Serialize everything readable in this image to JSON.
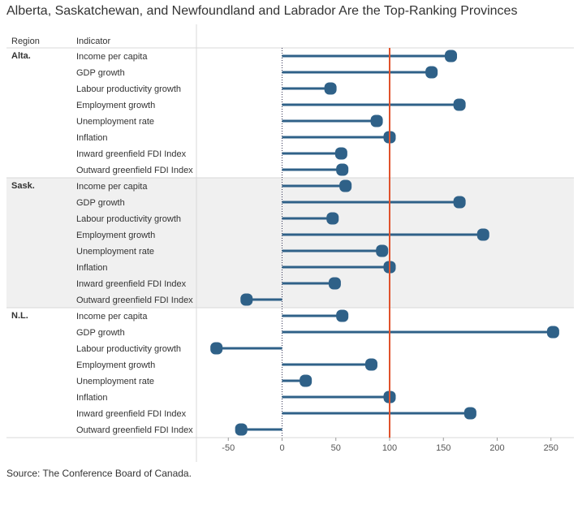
{
  "title": "Alberta, Saskatchewan, and Newfoundland and Labrador Are the Top-Ranking Provinces",
  "source": "Source: The Conference Board of Canada.",
  "colors": {
    "bar": "#2f6188",
    "reference_line": "#e0522c",
    "band": "#f0f0f0",
    "grid": "#d9d9d9"
  },
  "chart_data": {
    "type": "bar",
    "orientation": "horizontal",
    "column_headers": {
      "region": "Region",
      "indicator": "Indicator"
    },
    "xlim": [
      -80,
      270
    ],
    "x_ticks": [
      -50,
      0,
      50,
      100,
      150,
      200,
      250
    ],
    "reference_line": 100,
    "zero_line": 0,
    "groups": [
      {
        "region": "Alta.",
        "shaded": false,
        "rows": [
          {
            "indicator": "Income per capita",
            "value": 157
          },
          {
            "indicator": "GDP growth",
            "value": 139
          },
          {
            "indicator": "Labour productivity growth",
            "value": 45
          },
          {
            "indicator": "Employment growth",
            "value": 165
          },
          {
            "indicator": "Unemployment rate",
            "value": 88
          },
          {
            "indicator": "Inflation",
            "value": 100
          },
          {
            "indicator": "Inward greenfield FDI  Index",
            "value": 55
          },
          {
            "indicator": "Outward greenfield FDI Index",
            "value": 56
          }
        ]
      },
      {
        "region": "Sask.",
        "shaded": true,
        "rows": [
          {
            "indicator": "Income per capita",
            "value": 59
          },
          {
            "indicator": "GDP growth",
            "value": 165
          },
          {
            "indicator": "Labour productivity growth",
            "value": 47
          },
          {
            "indicator": "Employment growth",
            "value": 187
          },
          {
            "indicator": "Unemployment rate",
            "value": 93
          },
          {
            "indicator": "Inflation",
            "value": 100
          },
          {
            "indicator": "Inward greenfield FDI  Index",
            "value": 49
          },
          {
            "indicator": "Outward greenfield FDI Index",
            "value": -33
          }
        ]
      },
      {
        "region": "N.L.",
        "shaded": false,
        "rows": [
          {
            "indicator": "Income per capita",
            "value": 56
          },
          {
            "indicator": "GDP growth",
            "value": 252
          },
          {
            "indicator": "Labour productivity growth",
            "value": -61
          },
          {
            "indicator": "Employment growth",
            "value": 83
          },
          {
            "indicator": "Unemployment rate",
            "value": 22
          },
          {
            "indicator": "Inflation",
            "value": 100
          },
          {
            "indicator": "Inward greenfield FDI  Index",
            "value": 175
          },
          {
            "indicator": "Outward greenfield FDI Index",
            "value": -38
          }
        ]
      }
    ]
  }
}
